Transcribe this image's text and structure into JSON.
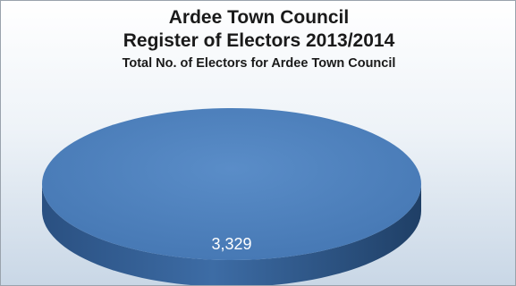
{
  "chart_data": {
    "type": "pie",
    "title": "Ardee Town Council",
    "subtitle": "Register of Electors 2013/2014",
    "subtitle2": "Total No. of Electors for Ardee Town Council",
    "categories": [
      ""
    ],
    "values": [
      3329
    ],
    "data_labels": [
      "3,329"
    ],
    "colors": {
      "slice_top": "#4a7ebb",
      "slice_side": "#2f5a8c",
      "label": "#ffffff"
    },
    "legend": "none"
  }
}
